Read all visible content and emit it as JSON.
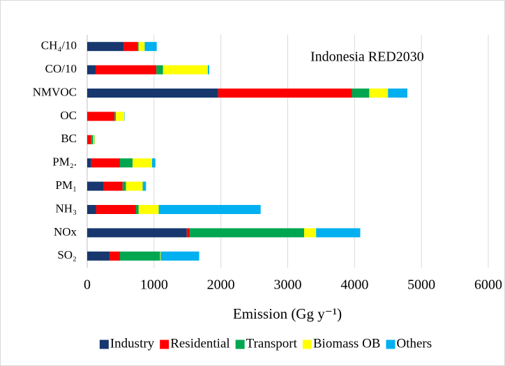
{
  "chart_data": {
    "type": "barh",
    "annotation": "Indonesia RED2030",
    "x_label": "Emission (Gg y⁻¹)",
    "categories": [
      "CH₄/10",
      "CO/10",
      "NMVOC",
      "OC",
      "BC",
      "PM₂.",
      "PM₁",
      "NH₃",
      "NOx",
      "SO₂"
    ],
    "series": [
      {
        "name": "Industry",
        "color": "#17376e",
        "values": [
          550,
          125,
          1960,
          0,
          0,
          60,
          240,
          135,
          1490,
          335
        ]
      },
      {
        "name": "Residential",
        "color": "#ff0000",
        "values": [
          210,
          910,
          2000,
          410,
          60,
          430,
          290,
          595,
          45,
          155
        ]
      },
      {
        "name": "Transport",
        "color": "#00a650",
        "values": [
          10,
          100,
          260,
          20,
          30,
          190,
          50,
          40,
          1710,
          600
        ]
      },
      {
        "name": "Biomass OB",
        "color": "#ffff00",
        "values": [
          90,
          670,
          280,
          125,
          20,
          290,
          250,
          300,
          180,
          10
        ]
      },
      {
        "name": "Others",
        "color": "#00b0f0",
        "values": [
          180,
          20,
          290,
          5,
          5,
          50,
          50,
          1525,
          660,
          575
        ]
      }
    ],
    "xlim": [
      0,
      6000
    ],
    "xticks": [
      0,
      1000,
      2000,
      3000,
      4000,
      5000,
      6000
    ],
    "grid": true,
    "legend": "bottom"
  }
}
